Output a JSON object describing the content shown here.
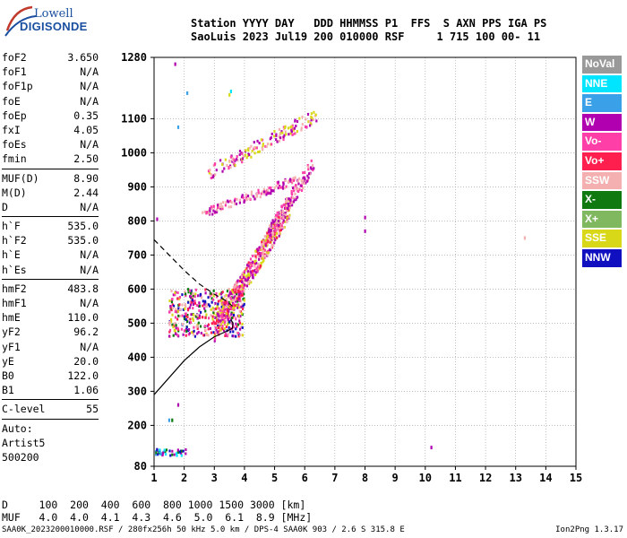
{
  "logo": {
    "line1": "Lowell",
    "line2": "DIGISONDE"
  },
  "header": {
    "line1": "Station YYYY DAY   DDD HHMMSS P1  FFS  S AXN PPS IGA PS",
    "line2": "SaoLuis 2023 Jul19 200 010000 RSF     1 715 100 00- 11"
  },
  "params": {
    "group1": [
      {
        "label": "foF2",
        "value": "3.650"
      },
      {
        "label": "foF1",
        "value": "N/A"
      },
      {
        "label": "foF1p",
        "value": "N/A"
      },
      {
        "label": "foE",
        "value": "N/A"
      },
      {
        "label": "foEp",
        "value": "0.35"
      },
      {
        "label": "fxI",
        "value": "4.05"
      },
      {
        "label": "foEs",
        "value": "N/A"
      },
      {
        "label": "fmin",
        "value": "2.50"
      }
    ],
    "group2": [
      {
        "label": "MUF(D)",
        "value": "8.90"
      },
      {
        "label": "M(D)",
        "value": "2.44"
      },
      {
        "label": "D",
        "value": "N/A"
      }
    ],
    "group3": [
      {
        "label": "h`F",
        "value": "535.0"
      },
      {
        "label": "h`F2",
        "value": "535.0"
      },
      {
        "label": "h`E",
        "value": "N/A"
      },
      {
        "label": "h`Es",
        "value": "N/A"
      }
    ],
    "group4": [
      {
        "label": "hmF2",
        "value": "483.8"
      },
      {
        "label": "hmF1",
        "value": "N/A"
      },
      {
        "label": "hmE",
        "value": "110.0"
      },
      {
        "label": "yF2",
        "value": "96.2"
      },
      {
        "label": "yF1",
        "value": "N/A"
      },
      {
        "label": "yE",
        "value": "20.0"
      },
      {
        "label": "B0",
        "value": "122.0"
      },
      {
        "label": "B1",
        "value": "1.06"
      }
    ],
    "group5": [
      {
        "label": "C-level",
        "value": "55"
      }
    ],
    "auto": [
      "Auto:",
      "Artist5",
      "500200"
    ]
  },
  "legend": [
    {
      "label": "NoVal",
      "color": "#999999"
    },
    {
      "label": "NNE",
      "color": "#00e5ff"
    },
    {
      "label": "E",
      "color": "#3aa0e8"
    },
    {
      "label": "W",
      "color": "#b000b0"
    },
    {
      "label": "Vo-",
      "color": "#ff3fa8"
    },
    {
      "label": "Vo+",
      "color": "#ff1f4f"
    },
    {
      "label": "SSW",
      "color": "#f4b0b0"
    },
    {
      "label": "X-",
      "color": "#107a10"
    },
    {
      "label": "X+",
      "color": "#80b860"
    },
    {
      "label": "SSE",
      "color": "#d8d818"
    },
    {
      "label": "NNW",
      "color": "#1010c0"
    }
  ],
  "muf_table": {
    "line1": "D     100  200  400  600  800 1000 1500 3000 [km]",
    "line2": "MUF   4.0  4.0  4.1  4.3  4.6  5.0  6.1  8.9 [MHz]"
  },
  "footer": {
    "left": "SAA0K_2023200010000.RSF / 280fx256h 50 kHz 5.0 km / DPS-4 SAA0K 903 / 2.6 S 315.8 E",
    "right": "Ion2Png 1.3.17"
  },
  "chart_data": {
    "type": "scatter",
    "xlim": [
      1,
      15
    ],
    "ylim": [
      80,
      1280
    ],
    "xticks": [
      1,
      2,
      3,
      4,
      5,
      6,
      7,
      8,
      9,
      10,
      11,
      12,
      13,
      14,
      15
    ],
    "yticks": [
      80,
      200,
      300,
      400,
      500,
      600,
      700,
      800,
      900,
      1000,
      1100,
      1280
    ],
    "grid": "dotted",
    "xlabel": "",
    "ylabel": "",
    "clusters": [
      {
        "name": "F-trace-low",
        "x_range": [
          1.5,
          4.0
        ],
        "y_range": [
          460,
          600
        ],
        "colors": [
          "#b000b0",
          "#ff3fa8",
          "#d8d818",
          "#f4b0b0",
          "#1010c0",
          "#107a10",
          "#ff1f4f"
        ]
      },
      {
        "name": "F-trace-main",
        "x_range": [
          3.0,
          5.5
        ],
        "y_range": [
          480,
          840
        ],
        "colors": [
          "#b000b0",
          "#ff3fa8",
          "#f4b0b0",
          "#d8d818",
          "#ff1f4f"
        ]
      },
      {
        "name": "F-trace-upper",
        "x_range": [
          4.8,
          6.3
        ],
        "y_range": [
          760,
          970
        ],
        "colors": [
          "#b000b0",
          "#ff3fa8",
          "#f4b0b0"
        ]
      },
      {
        "name": "2F-trace",
        "x_range": [
          2.6,
          5.7
        ],
        "y_range": [
          820,
          920
        ],
        "colors": [
          "#b000b0",
          "#ff3fa8",
          "#f4b0b0"
        ]
      },
      {
        "name": "2F-trace-upper",
        "x_range": [
          2.8,
          6.4
        ],
        "y_range": [
          940,
          1110
        ],
        "colors": [
          "#b000b0",
          "#ff3fa8",
          "#f4b0b0",
          "#d8d818"
        ]
      }
    ],
    "isolated_points": [
      {
        "x": 1.1,
        "y": 805,
        "color": "#b000b0"
      },
      {
        "x": 2.1,
        "y": 1175,
        "color": "#3aa0e8"
      },
      {
        "x": 1.8,
        "y": 1075,
        "color": "#3aa0e8"
      },
      {
        "x": 3.55,
        "y": 1180,
        "color": "#00e5ff"
      },
      {
        "x": 3.5,
        "y": 1170,
        "color": "#d8d818"
      },
      {
        "x": 8.0,
        "y": 810,
        "color": "#b000b0"
      },
      {
        "x": 8.0,
        "y": 770,
        "color": "#b000b0"
      },
      {
        "x": 10.2,
        "y": 135,
        "color": "#b000b0"
      },
      {
        "x": 13.3,
        "y": 750,
        "color": "#f4b0b0"
      },
      {
        "x": 1.8,
        "y": 260,
        "color": "#b000b0"
      },
      {
        "x": 1.5,
        "y": 215,
        "color": "#3aa0e8"
      },
      {
        "x": 1.6,
        "y": 215,
        "color": "#107a10"
      },
      {
        "x": 1.7,
        "y": 1260,
        "color": "#b000b0"
      }
    ],
    "bottom_cluster": {
      "x_range": [
        1.05,
        2.05
      ],
      "y_range": [
        110,
        130
      ],
      "colors": [
        "#1010c0",
        "#3aa0e8",
        "#00e5ff",
        "#107a10",
        "#b000b0"
      ]
    },
    "profile_solid": [
      [
        1.0,
        290
      ],
      [
        1.5,
        340
      ],
      [
        2.0,
        390
      ],
      [
        2.5,
        430
      ],
      [
        3.0,
        460
      ],
      [
        3.4,
        476
      ],
      [
        3.6,
        485
      ],
      [
        3.62,
        500
      ],
      [
        3.55,
        510
      ]
    ],
    "profile_dashed": [
      [
        1.0,
        745
      ],
      [
        1.5,
        700
      ],
      [
        2.0,
        655
      ],
      [
        2.5,
        615
      ],
      [
        3.0,
        585
      ],
      [
        3.4,
        565
      ],
      [
        3.6,
        550
      ]
    ]
  }
}
